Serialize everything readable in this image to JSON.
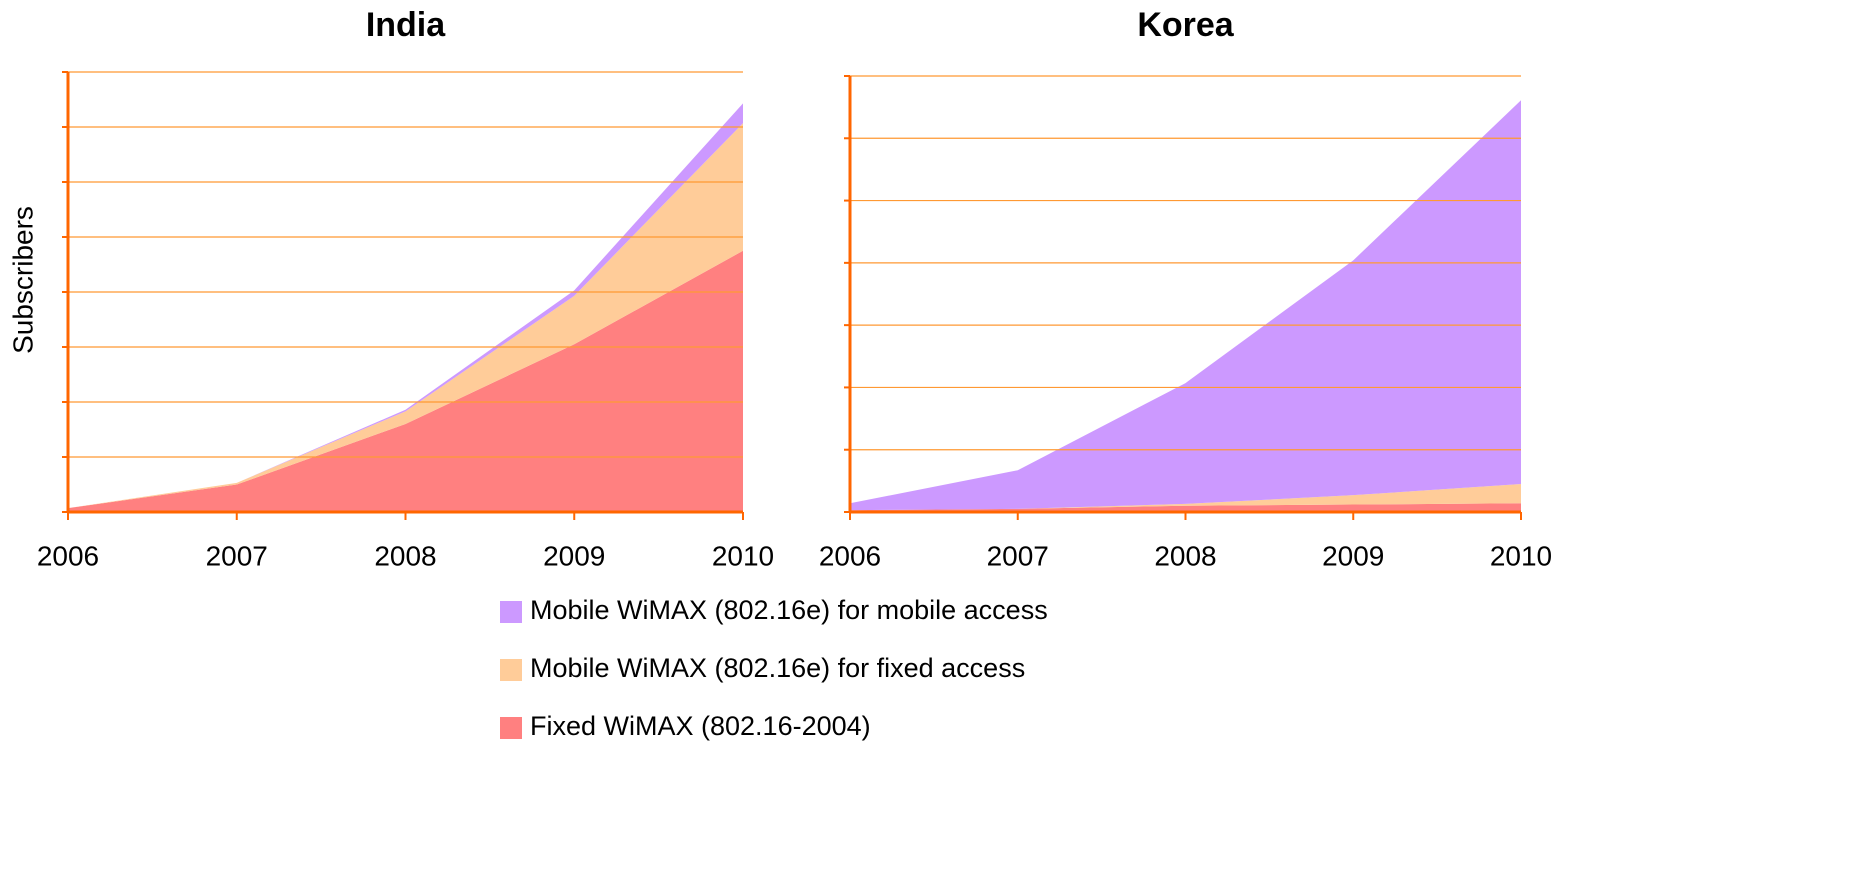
{
  "chart_data": [
    {
      "type": "stacked_area",
      "title": "India",
      "y_label": "Subscribers",
      "categories": [
        "2006",
        "2007",
        "2008",
        "2009",
        "2010"
      ],
      "ylim": [
        0,
        8
      ],
      "yticks": [
        0,
        1,
        2,
        3,
        4,
        5,
        6,
        7,
        8
      ],
      "grid": true,
      "series": [
        {
          "name": "Fixed WiMAX (802.16-2004)",
          "color": "#ff8080",
          "values": [
            0.07,
            0.5,
            1.6,
            3.05,
            4.75
          ]
        },
        {
          "name": "Mobile WiMAX (802.16e) for fixed access",
          "color": "#ffcc99",
          "values": [
            0,
            0.03,
            0.23,
            0.88,
            2.32
          ]
        },
        {
          "name": "Mobile WiMAX (802.16e) for mobile access",
          "color": "#cc99ff",
          "values": [
            0,
            0,
            0.03,
            0.1,
            0.36
          ]
        }
      ]
    },
    {
      "type": "stacked_area",
      "title": "Korea",
      "categories": [
        "2006",
        "2007",
        "2008",
        "2009",
        "2010"
      ],
      "ylim": [
        0,
        7
      ],
      "yticks": [
        0,
        1,
        2,
        3,
        4,
        5,
        6,
        7
      ],
      "grid": true,
      "series": [
        {
          "color": "#ff8080",
          "values": [
            0.03,
            0.05,
            0.1,
            0.12,
            0.14
          ]
        },
        {
          "color": "#ffcc99",
          "values": [
            0,
            0,
            0.03,
            0.15,
            0.31
          ]
        },
        {
          "color": "#cc99ff",
          "values": [
            0.11,
            0.62,
            1.94,
            3.77,
            6.16
          ]
        }
      ]
    }
  ]
}
